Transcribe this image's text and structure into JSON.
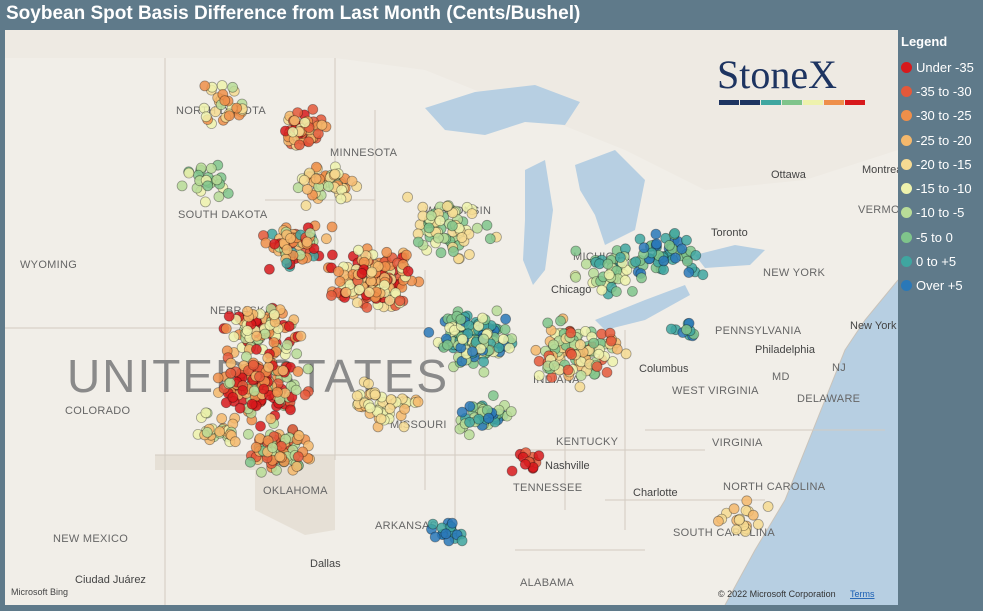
{
  "header": {
    "title": "Soybean Spot Basis Difference from Last Month (Cents/Bushel)"
  },
  "legend": {
    "title": "Legend",
    "items": [
      {
        "label": "Under -35",
        "color": "#d7191c"
      },
      {
        "label": "-35 to -30",
        "color": "#e4583a"
      },
      {
        "label": "-30 to -25",
        "color": "#ee8f4a"
      },
      {
        "label": "-25 to -20",
        "color": "#f4b86c"
      },
      {
        "label": "-20 to -15",
        "color": "#f6da92"
      },
      {
        "label": "-15 to -10",
        "color": "#eef2ad"
      },
      {
        "label": "-10 to -5",
        "color": "#b9dc98"
      },
      {
        "label": "-5 to 0",
        "color": "#7fc48b"
      },
      {
        "label": "0 to +5",
        "color": "#3fa6a0"
      },
      {
        "label": "Over +5",
        "color": "#2a78b8"
      }
    ]
  },
  "logo": "StoneX",
  "map_labels": [
    "NORTH DAKOTA",
    "MINNESOTA",
    "SOUTH DAKOTA",
    "WYOMING",
    "NEBRASKA",
    "COLORADO",
    "MISSOURI",
    "OKLAHOMA",
    "ARKANSAS",
    "NEW MEXICO",
    "Dallas",
    "Ciudad Juárez",
    "TENNESSEE",
    "Nashville",
    "KENTUCKY",
    "ALABAMA",
    "Charlotte",
    "NORTH CAROLINA",
    "SOUTH CAROLINA",
    "VIRGINIA",
    "WEST VIRGINIA",
    "Columbus",
    "Chicago",
    "INDIANA",
    "PENNSYLVANIA",
    "Philadelphia",
    "New York",
    "NEW YORK",
    "NJ",
    "MD",
    "DELAWARE",
    "Ottawa",
    "Montreal",
    "VERMONT",
    "Toronto",
    "MICHIGAN",
    "WISCONSIN",
    "UNITED STATES"
  ],
  "attribution": {
    "bing": "Microsoft Bing",
    "copyright": "© 2022 Microsoft Corporation",
    "terms": "Terms"
  }
}
